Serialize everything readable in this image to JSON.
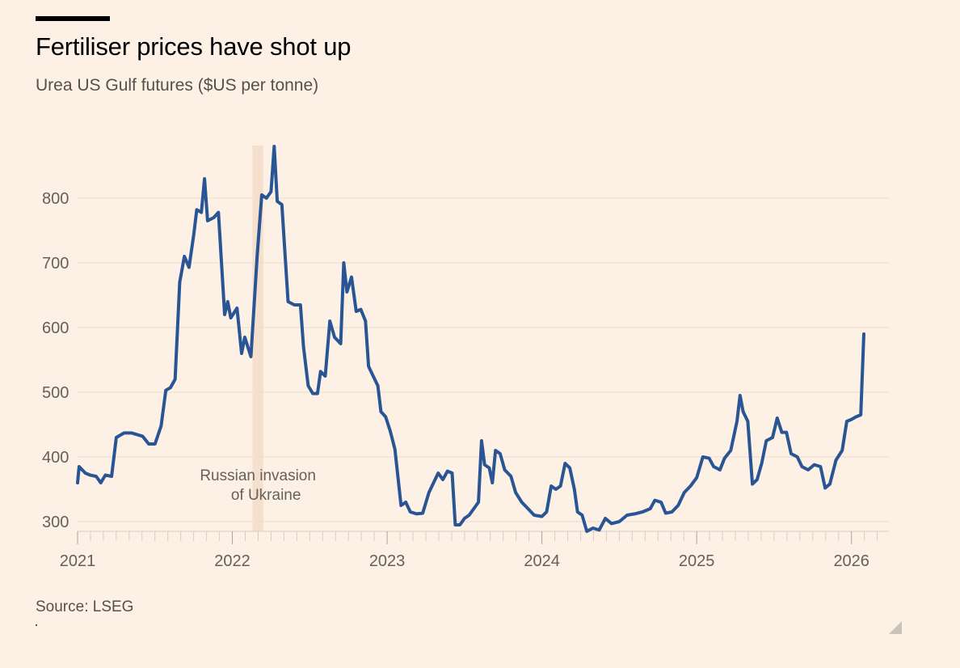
{
  "header": {
    "title": "Fertiliser prices have shot up",
    "subtitle": "Urea US Gulf futures ($US per tonne)"
  },
  "footer": {
    "source": "Source: LSEG"
  },
  "colors": {
    "line": "#2a5595",
    "shade": "#f6dfcd",
    "grid": "#ecdccd",
    "axis": "#d7cdc2",
    "text": "#66605a"
  },
  "chart_data": {
    "type": "line",
    "title": "Fertiliser prices have shot up",
    "ylabel": "Urea US Gulf futures ($US per tonne)",
    "xlim": [
      2021.0,
      2026.2
    ],
    "ylim": [
      285,
      880
    ],
    "yticks": [
      300,
      400,
      500,
      600,
      700,
      800
    ],
    "xticks": [
      {
        "value": 2021,
        "label": "2021"
      },
      {
        "value": 2022,
        "label": "2022"
      },
      {
        "value": 2023,
        "label": "2023"
      },
      {
        "value": 2024,
        "label": "2024"
      },
      {
        "value": 2025,
        "label": "2025"
      },
      {
        "value": 2026,
        "label": "2026"
      }
    ],
    "annotation": {
      "line1": "Russian invasion",
      "line2": "of Ukraine",
      "span": [
        2022.13,
        2022.2
      ]
    },
    "series": [
      {
        "name": "Urea US Gulf futures",
        "points": [
          [
            2021.0,
            360
          ],
          [
            2021.01,
            385
          ],
          [
            2021.05,
            375
          ],
          [
            2021.08,
            372
          ],
          [
            2021.12,
            370
          ],
          [
            2021.15,
            360
          ],
          [
            2021.18,
            372
          ],
          [
            2021.22,
            370
          ],
          [
            2021.25,
            430
          ],
          [
            2021.3,
            437
          ],
          [
            2021.35,
            437
          ],
          [
            2021.42,
            432
          ],
          [
            2021.46,
            420
          ],
          [
            2021.5,
            420
          ],
          [
            2021.54,
            448
          ],
          [
            2021.57,
            503
          ],
          [
            2021.6,
            507
          ],
          [
            2021.63,
            520
          ],
          [
            2021.66,
            670
          ],
          [
            2021.69,
            710
          ],
          [
            2021.72,
            693
          ],
          [
            2021.75,
            743
          ],
          [
            2021.77,
            782
          ],
          [
            2021.8,
            778
          ],
          [
            2021.82,
            830
          ],
          [
            2021.84,
            765
          ],
          [
            2021.88,
            770
          ],
          [
            2021.91,
            778
          ],
          [
            2021.93,
            700
          ],
          [
            2021.95,
            620
          ],
          [
            2021.97,
            640
          ],
          [
            2021.99,
            615
          ],
          [
            2022.03,
            630
          ],
          [
            2022.06,
            560
          ],
          [
            2022.08,
            585
          ],
          [
            2022.12,
            555
          ],
          [
            2022.16,
            710
          ],
          [
            2022.19,
            805
          ],
          [
            2022.22,
            800
          ],
          [
            2022.25,
            810
          ],
          [
            2022.27,
            880
          ],
          [
            2022.29,
            795
          ],
          [
            2022.32,
            790
          ],
          [
            2022.36,
            640
          ],
          [
            2022.4,
            635
          ],
          [
            2022.44,
            635
          ],
          [
            2022.46,
            570
          ],
          [
            2022.49,
            510
          ],
          [
            2022.52,
            498
          ],
          [
            2022.55,
            498
          ],
          [
            2022.57,
            532
          ],
          [
            2022.6,
            525
          ],
          [
            2022.63,
            610
          ],
          [
            2022.66,
            585
          ],
          [
            2022.68,
            580
          ],
          [
            2022.7,
            575
          ],
          [
            2022.72,
            700
          ],
          [
            2022.74,
            655
          ],
          [
            2022.77,
            678
          ],
          [
            2022.8,
            625
          ],
          [
            2022.83,
            628
          ],
          [
            2022.86,
            610
          ],
          [
            2022.88,
            540
          ],
          [
            2022.91,
            525
          ],
          [
            2022.94,
            510
          ],
          [
            2022.96,
            470
          ],
          [
            2022.99,
            462
          ],
          [
            2023.02,
            440
          ],
          [
            2023.05,
            412
          ],
          [
            2023.09,
            325
          ],
          [
            2023.12,
            330
          ],
          [
            2023.15,
            315
          ],
          [
            2023.19,
            312
          ],
          [
            2023.23,
            313
          ],
          [
            2023.27,
            345
          ],
          [
            2023.3,
            360
          ],
          [
            2023.33,
            375
          ],
          [
            2023.36,
            365
          ],
          [
            2023.39,
            378
          ],
          [
            2023.42,
            375
          ],
          [
            2023.44,
            295
          ],
          [
            2023.47,
            295
          ],
          [
            2023.5,
            305
          ],
          [
            2023.53,
            310
          ],
          [
            2023.56,
            320
          ],
          [
            2023.59,
            330
          ],
          [
            2023.61,
            425
          ],
          [
            2023.63,
            388
          ],
          [
            2023.66,
            383
          ],
          [
            2023.68,
            360
          ],
          [
            2023.7,
            410
          ],
          [
            2023.73,
            405
          ],
          [
            2023.76,
            380
          ],
          [
            2023.8,
            370
          ],
          [
            2023.83,
            345
          ],
          [
            2023.87,
            330
          ],
          [
            2023.91,
            320
          ],
          [
            2023.95,
            310
          ],
          [
            2024.0,
            308
          ],
          [
            2024.03,
            315
          ],
          [
            2024.06,
            355
          ],
          [
            2024.09,
            350
          ],
          [
            2024.12,
            355
          ],
          [
            2024.15,
            390
          ],
          [
            2024.18,
            383
          ],
          [
            2024.21,
            350
          ],
          [
            2024.23,
            315
          ],
          [
            2024.26,
            310
          ],
          [
            2024.29,
            285
          ],
          [
            2024.33,
            290
          ],
          [
            2024.37,
            287
          ],
          [
            2024.41,
            305
          ],
          [
            2024.45,
            297
          ],
          [
            2024.5,
            300
          ],
          [
            2024.55,
            310
          ],
          [
            2024.6,
            312
          ],
          [
            2024.65,
            315
          ],
          [
            2024.7,
            320
          ],
          [
            2024.73,
            333
          ],
          [
            2024.77,
            330
          ],
          [
            2024.8,
            313
          ],
          [
            2024.84,
            315
          ],
          [
            2024.88,
            325
          ],
          [
            2024.92,
            345
          ],
          [
            2024.96,
            355
          ],
          [
            2025.0,
            368
          ],
          [
            2025.04,
            400
          ],
          [
            2025.08,
            398
          ],
          [
            2025.11,
            385
          ],
          [
            2025.15,
            380
          ],
          [
            2025.18,
            398
          ],
          [
            2025.22,
            410
          ],
          [
            2025.26,
            455
          ],
          [
            2025.28,
            495
          ],
          [
            2025.3,
            470
          ],
          [
            2025.33,
            455
          ],
          [
            2025.36,
            358
          ],
          [
            2025.39,
            365
          ],
          [
            2025.42,
            390
          ],
          [
            2025.45,
            425
          ],
          [
            2025.49,
            430
          ],
          [
            2025.52,
            460
          ],
          [
            2025.55,
            438
          ],
          [
            2025.58,
            438
          ],
          [
            2025.61,
            405
          ],
          [
            2025.65,
            400
          ],
          [
            2025.68,
            385
          ],
          [
            2025.72,
            380
          ],
          [
            2025.76,
            388
          ],
          [
            2025.8,
            385
          ],
          [
            2025.83,
            352
          ],
          [
            2025.86,
            358
          ],
          [
            2025.9,
            395
          ],
          [
            2025.94,
            410
          ],
          [
            2025.97,
            455
          ],
          [
            2026.0,
            458
          ],
          [
            2026.03,
            462
          ],
          [
            2026.06,
            465
          ],
          [
            2026.08,
            590
          ]
        ]
      }
    ]
  }
}
